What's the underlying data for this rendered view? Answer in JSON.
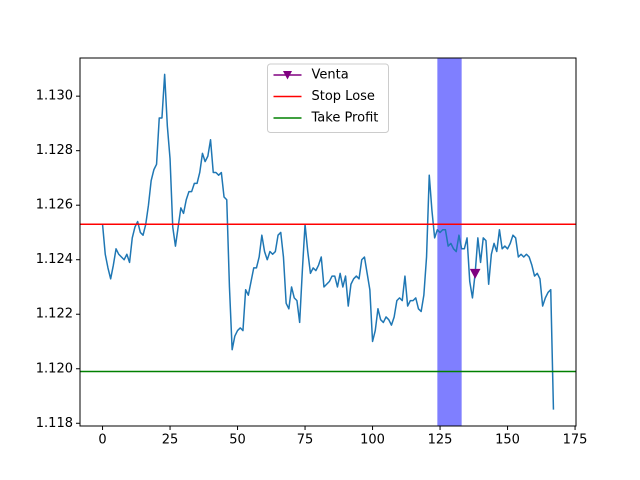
{
  "chart_data": {
    "type": "line",
    "series": [
      {
        "color": "#1f77b4",
        "values": [
          1.1253,
          1.1242,
          1.1237,
          1.1233,
          1.1238,
          1.1244,
          1.1242,
          1.1241,
          1.124,
          1.1242,
          1.1239,
          1.1248,
          1.1252,
          1.1254,
          1.125,
          1.1249,
          1.1253,
          1.126,
          1.1269,
          1.1273,
          1.1275,
          1.1292,
          1.1292,
          1.1308,
          1.1289,
          1.1277,
          1.1252,
          1.1245,
          1.1252,
          1.1259,
          1.1257,
          1.1262,
          1.1265,
          1.1265,
          1.1268,
          1.1268,
          1.1272,
          1.1279,
          1.1276,
          1.1278,
          1.1284,
          1.1272,
          1.1272,
          1.1271,
          1.1272,
          1.1263,
          1.1262,
          1.123,
          1.1207,
          1.1212,
          1.1214,
          1.1215,
          1.1214,
          1.1229,
          1.1227,
          1.1232,
          1.1237,
          1.1237,
          1.1241,
          1.1249,
          1.1243,
          1.124,
          1.1243,
          1.1242,
          1.1243,
          1.1249,
          1.125,
          1.1241,
          1.1224,
          1.1222,
          1.123,
          1.1226,
          1.1225,
          1.1217,
          1.1236,
          1.1253,
          1.1243,
          1.1235,
          1.1237,
          1.1236,
          1.1238,
          1.1241,
          1.123,
          1.1231,
          1.1232,
          1.1234,
          1.1234,
          1.123,
          1.1235,
          1.123,
          1.1234,
          1.1223,
          1.1231,
          1.1233,
          1.1234,
          1.1233,
          1.124,
          1.1241,
          1.1235,
          1.1229,
          1.121,
          1.1214,
          1.1222,
          1.1218,
          1.1217,
          1.1219,
          1.1218,
          1.1216,
          1.1219,
          1.1225,
          1.1226,
          1.1225,
          1.1234,
          1.1223,
          1.1225,
          1.1225,
          1.1226,
          1.1222,
          1.1221,
          1.1227,
          1.1241,
          1.1271,
          1.1258,
          1.1248,
          1.1251,
          1.125,
          1.1251,
          1.1251,
          1.1245,
          1.1246,
          1.1244,
          1.1243,
          1.1249,
          1.1244,
          1.1244,
          1.1248,
          1.1232,
          1.1226,
          1.1235,
          1.1248,
          1.1239,
          1.1248,
          1.1247,
          1.1231,
          1.1242,
          1.1246,
          1.1243,
          1.1251,
          1.1244,
          1.1245,
          1.1244,
          1.1246,
          1.1249,
          1.1248,
          1.1241,
          1.1242,
          1.1241,
          1.1242,
          1.1241,
          1.1238,
          1.1234,
          1.1235,
          1.1233,
          1.1223,
          1.1226,
          1.1228,
          1.1229,
          1.1185
        ]
      },
      {
        "name": "Venta",
        "color": "purple",
        "marker": "v",
        "x": [
          138
        ],
        "values": [
          1.1235
        ]
      }
    ],
    "hlines": [
      {
        "name": "Stop Lose",
        "value": 1.1253,
        "color": "red"
      },
      {
        "name": "Take Profit",
        "value": 1.1199,
        "color": "green"
      }
    ],
    "vspans": [
      {
        "xmin": 124,
        "xmax": 133,
        "color": "blue",
        "alpha": 0.5
      }
    ],
    "xlim": [
      -8.35,
      175.35
    ],
    "ylim": [
      1.1179,
      1.1314
    ],
    "xticks": [
      0,
      25,
      50,
      75,
      100,
      125,
      150,
      175
    ],
    "yticks": [
      1.118,
      {
        "value": 1.12,
        "label": "1.120"
      },
      1.122,
      1.124,
      1.126,
      1.128,
      {
        "value": 1.13,
        "label": "1.130"
      }
    ],
    "legend": "upper center"
  }
}
